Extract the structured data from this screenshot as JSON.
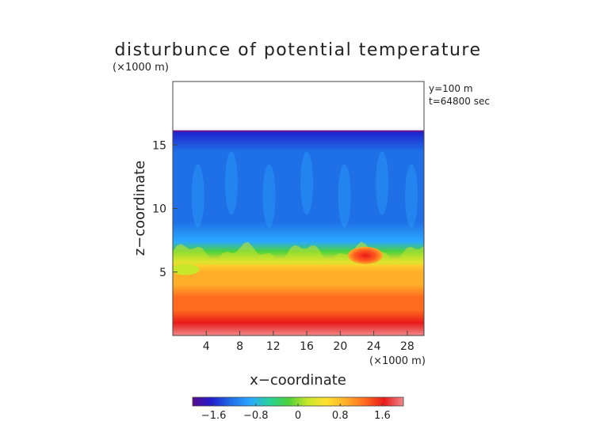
{
  "chart_data": {
    "type": "heatmap",
    "title": "disturbunce of potential temperature",
    "y_unit": "(×1000 m)",
    "x_unit": "(×1000 m)",
    "xlabel": "x−coordinate",
    "ylabel": "z−coordinate",
    "annotations": [
      "y=100 m",
      "t=64800 sec"
    ],
    "xlim": [
      0,
      30
    ],
    "ylim": [
      0,
      20
    ],
    "x_ticks": [
      4,
      8,
      12,
      16,
      20,
      24,
      28
    ],
    "y_ticks": [
      5,
      10,
      15
    ],
    "field_top_z": 16.1,
    "colorbar": {
      "range": [
        -2,
        2
      ],
      "tick_values": [
        -1.6,
        -0.8,
        0,
        0.8,
        1.6
      ],
      "tick_labels": [
        "−1.6",
        "−0.8",
        "0",
        "0.8",
        "1.6"
      ],
      "colors": [
        "#5a0a8c",
        "#1f1fcc",
        "#1f6fe6",
        "#2aa8ff",
        "#2ad29a",
        "#4cd23a",
        "#c8e62a",
        "#ffe030",
        "#ffae2a",
        "#ff6a1e",
        "#e81a1a",
        "#f08a8a"
      ]
    },
    "profile": {
      "z": [
        0,
        1,
        2,
        3,
        4,
        5,
        5.8,
        6.6,
        7.4,
        9,
        12,
        14.5,
        16.1
      ],
      "value": [
        1.9,
        1.6,
        1.3,
        1.1,
        0.9,
        0.75,
        0.55,
        -0.1,
        -0.9,
        -1.1,
        -1.2,
        -1.35,
        -1.6
      ]
    },
    "features": [
      {
        "label": "warm bubble",
        "x": 23,
        "z": 6.3,
        "value": 1.6
      },
      {
        "label": "green tongue",
        "x": 1.5,
        "z": 5.2,
        "value": 0.0
      }
    ]
  }
}
